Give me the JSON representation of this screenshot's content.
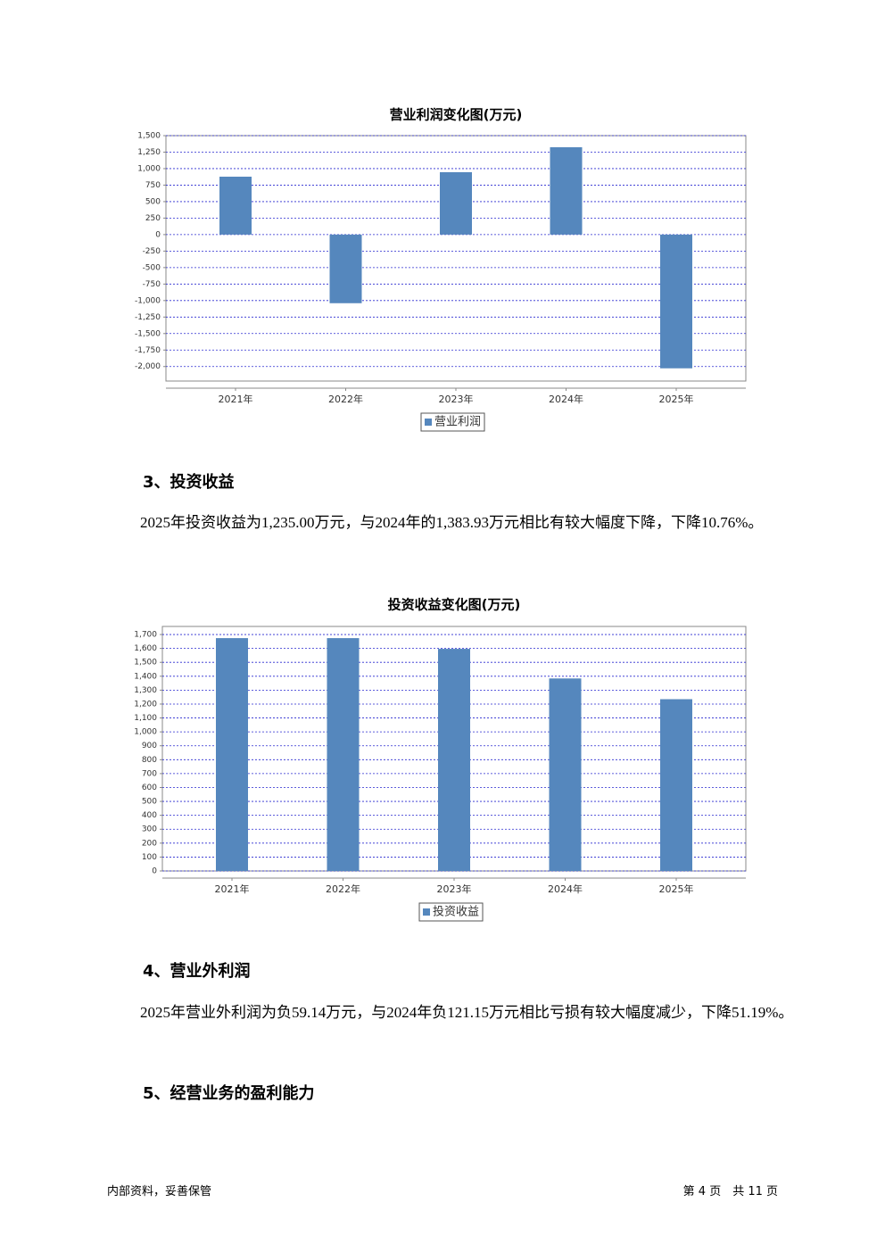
{
  "chart_data": [
    {
      "type": "bar",
      "title": "营业利润变化图(万元)",
      "categories": [
        "2021年",
        "2022年",
        "2023年",
        "2024年",
        "2025年"
      ],
      "series": [
        {
          "name": "营业利润",
          "color": "#5587bd",
          "values": [
            878,
            -1040,
            946,
            1324,
            -2027
          ]
        }
      ],
      "ylim": [
        -2220,
        1500
      ],
      "yticks": [
        {
          "value": 1500,
          "label": "1,500"
        },
        {
          "value": 1250,
          "label": "1,250"
        },
        {
          "value": 1000,
          "label": "1,000"
        },
        750,
        500,
        250,
        0,
        -250,
        -500,
        -750,
        {
          "value": -1000,
          "label": "-1,000"
        },
        {
          "value": -1250,
          "label": "-1,250"
        },
        {
          "value": -1500,
          "label": "-1,500"
        },
        {
          "value": -1750,
          "label": "-1,750"
        },
        {
          "value": -2000,
          "label": "-2,000"
        }
      ],
      "grid": true,
      "legend": "bottom"
    },
    {
      "type": "bar",
      "title": "投资收益变化图(万元)",
      "categories": [
        "2021年",
        "2022年",
        "2023年",
        "2024年",
        "2025年"
      ],
      "series": [
        {
          "name": "投资收益",
          "color": "#5587bd",
          "values": [
            1674,
            1674,
            1597,
            1384,
            1235
          ]
        }
      ],
      "ylim": [
        0,
        1758
      ],
      "yticks": [
        {
          "value": 1700,
          "label": "1,700"
        },
        {
          "value": 1600,
          "label": "1,600"
        },
        {
          "value": 1500,
          "label": "1,500"
        },
        {
          "value": 1400,
          "label": "1,400"
        },
        {
          "value": 1300,
          "label": "1,300"
        },
        {
          "value": 1200,
          "label": "1,200"
        },
        {
          "value": 1100,
          "label": "1,100"
        },
        {
          "value": 1000,
          "label": "1,000"
        },
        900,
        800,
        700,
        600,
        500,
        400,
        300,
        200,
        100,
        0
      ],
      "grid": true,
      "legend": "bottom"
    }
  ],
  "sections": [
    {
      "heading": "3、投资收益",
      "paragraph": "2025年投资收益为1,235.00万元，与2024年的1,383.93万元相比有较大幅度下降，下降10.76%。"
    },
    {
      "heading": "4、营业外利润",
      "paragraph": "2025年营业外利润为负59.14万元，与2024年负121.15万元相比亏损有较大幅度减少，下降51.19%。"
    },
    {
      "heading": "5、经营业务的盈利能力"
    }
  ],
  "footer": {
    "left": "内部资料，妥善保管",
    "right": "第 4 页　共 11 页"
  }
}
